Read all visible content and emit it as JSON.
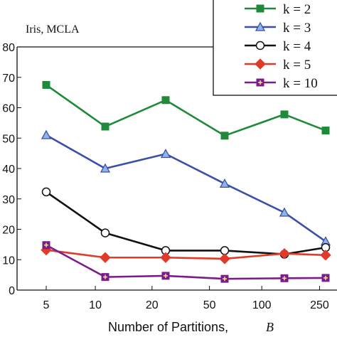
{
  "chart_data": {
    "type": "line",
    "annotation": "Iris, MCLA",
    "xlabel": "Number of Partitions,",
    "xlabel_symbol": "B",
    "ylabel": "",
    "categories": [
      "5",
      "10",
      "20",
      "50",
      "100",
      "250"
    ],
    "ylim": [
      0,
      80
    ],
    "yticks": [
      "0",
      "10",
      "20",
      "30",
      "40",
      "50",
      "60",
      "70",
      "80"
    ],
    "grid": false,
    "legend_position": "top-right",
    "series": [
      {
        "name": "k = 2",
        "color": "#1f8a3a",
        "marker": "square",
        "x": [
          5,
          11.5,
          23.5,
          65,
          130,
          280
        ],
        "values": [
          67.5,
          53.8,
          62.5,
          50.8,
          57.8,
          52.5
        ]
      },
      {
        "name": "k = 3",
        "color": "#3a4fa8",
        "marker": "triangle",
        "x": [
          5,
          11.5,
          23.5,
          65,
          130,
          280
        ],
        "values": [
          51,
          40,
          44.8,
          35,
          25.5,
          16
        ]
      },
      {
        "name": "k = 4",
        "color": "#111111",
        "marker": "circle",
        "x": [
          5,
          11.5,
          23.5,
          65,
          130,
          280
        ],
        "values": [
          32.3,
          18.8,
          13,
          13,
          11.8,
          14
        ]
      },
      {
        "name": "k = 5",
        "color": "#e03a2a",
        "marker": "diamond",
        "x": [
          5,
          11.5,
          23.5,
          65,
          130,
          280
        ],
        "values": [
          13.2,
          10.7,
          10.7,
          10.3,
          12,
          11.5
        ]
      },
      {
        "name": "k = 10",
        "color": "#7b1c8a",
        "marker": "plus-square",
        "x": [
          5,
          11.5,
          23.5,
          65,
          130,
          280
        ],
        "values": [
          14.8,
          4.3,
          4.7,
          3.7,
          3.9,
          4
        ]
      }
    ]
  }
}
